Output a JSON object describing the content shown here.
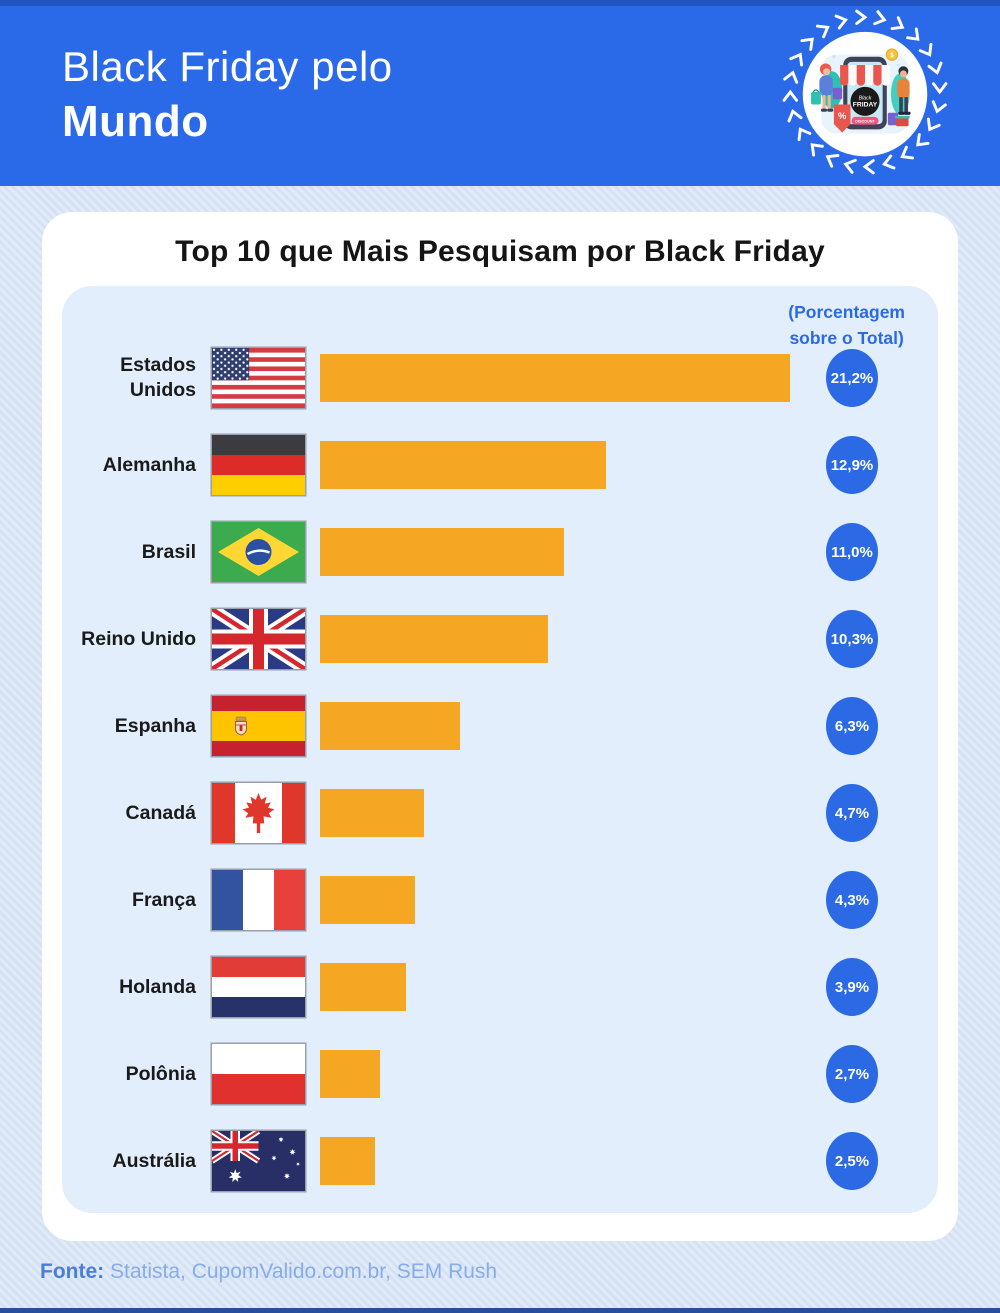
{
  "header": {
    "title_line1": "Black Friday pelo",
    "title_line2": "Mundo",
    "logo": {
      "black": "Black",
      "friday": "FRIDAY",
      "discount": "DISCOUNT",
      "percent": "%",
      "dollar": "$"
    }
  },
  "card": {
    "title": "Top 10 que Mais Pesquisam por Black Friday",
    "note_line1": "(Porcentagem",
    "note_line2": "sobre o Total)"
  },
  "chart_data": {
    "type": "bar",
    "orientation": "horizontal",
    "title": "Top 10 que Mais Pesquisam por Black Friday",
    "note": "(Porcentagem sobre o Total)",
    "categories": [
      "Estados Unidos",
      "Alemanha",
      "Brasil",
      "Reino Unido",
      "Espanha",
      "Canadá",
      "França",
      "Holanda",
      "Polônia",
      "Austrália"
    ],
    "values": [
      21.2,
      12.9,
      11.0,
      10.3,
      6.3,
      4.7,
      4.3,
      3.9,
      2.7,
      2.5
    ],
    "value_labels": [
      "21,2%",
      "12,9%",
      "11,0%",
      "10,3%",
      "6,3%",
      "4,7%",
      "4,3%",
      "3,9%",
      "2,7%",
      "2,5%"
    ],
    "xlim": [
      0,
      21.2
    ],
    "bar_color": "#F5A623",
    "badge_color": "#2B6AE4",
    "legend": "none",
    "grid": "off"
  },
  "rows": [
    {
      "label": "Estados Unidos",
      "flag": "usa",
      "percent": 21.2,
      "value_label": "21,2%"
    },
    {
      "label": "Alemanha",
      "flag": "germany",
      "percent": 12.9,
      "value_label": "12,9%"
    },
    {
      "label": "Brasil",
      "flag": "brazil",
      "percent": 11.0,
      "value_label": "11,0%"
    },
    {
      "label": "Reino Unido",
      "flag": "uk",
      "percent": 10.3,
      "value_label": "10,3%"
    },
    {
      "label": "Espanha",
      "flag": "spain",
      "percent": 6.3,
      "value_label": "6,3%"
    },
    {
      "label": "Canadá",
      "flag": "canada",
      "percent": 4.7,
      "value_label": "4,7%"
    },
    {
      "label": "França",
      "flag": "france",
      "percent": 4.3,
      "value_label": "4,3%"
    },
    {
      "label": "Holanda",
      "flag": "netherlands",
      "percent": 3.9,
      "value_label": "3,9%"
    },
    {
      "label": "Polônia",
      "flag": "poland",
      "percent": 2.7,
      "value_label": "2,7%"
    },
    {
      "label": "Austrália",
      "flag": "australia",
      "percent": 2.5,
      "value_label": "2,5%"
    }
  ],
  "footer": {
    "source_label": "Fonte:",
    "source_text": " Statista, CupomValido.com.br, SEM Rush"
  },
  "colors": {
    "header_blue": "#2A6AE8",
    "bar_orange": "#F5A623",
    "badge_blue": "#2B6AE4",
    "panel_bg": "#E2EEFB",
    "page_bg": "#D9E4F4",
    "card_bg": "#FFFFFF",
    "bottom_strip": "#2C4C9C"
  }
}
